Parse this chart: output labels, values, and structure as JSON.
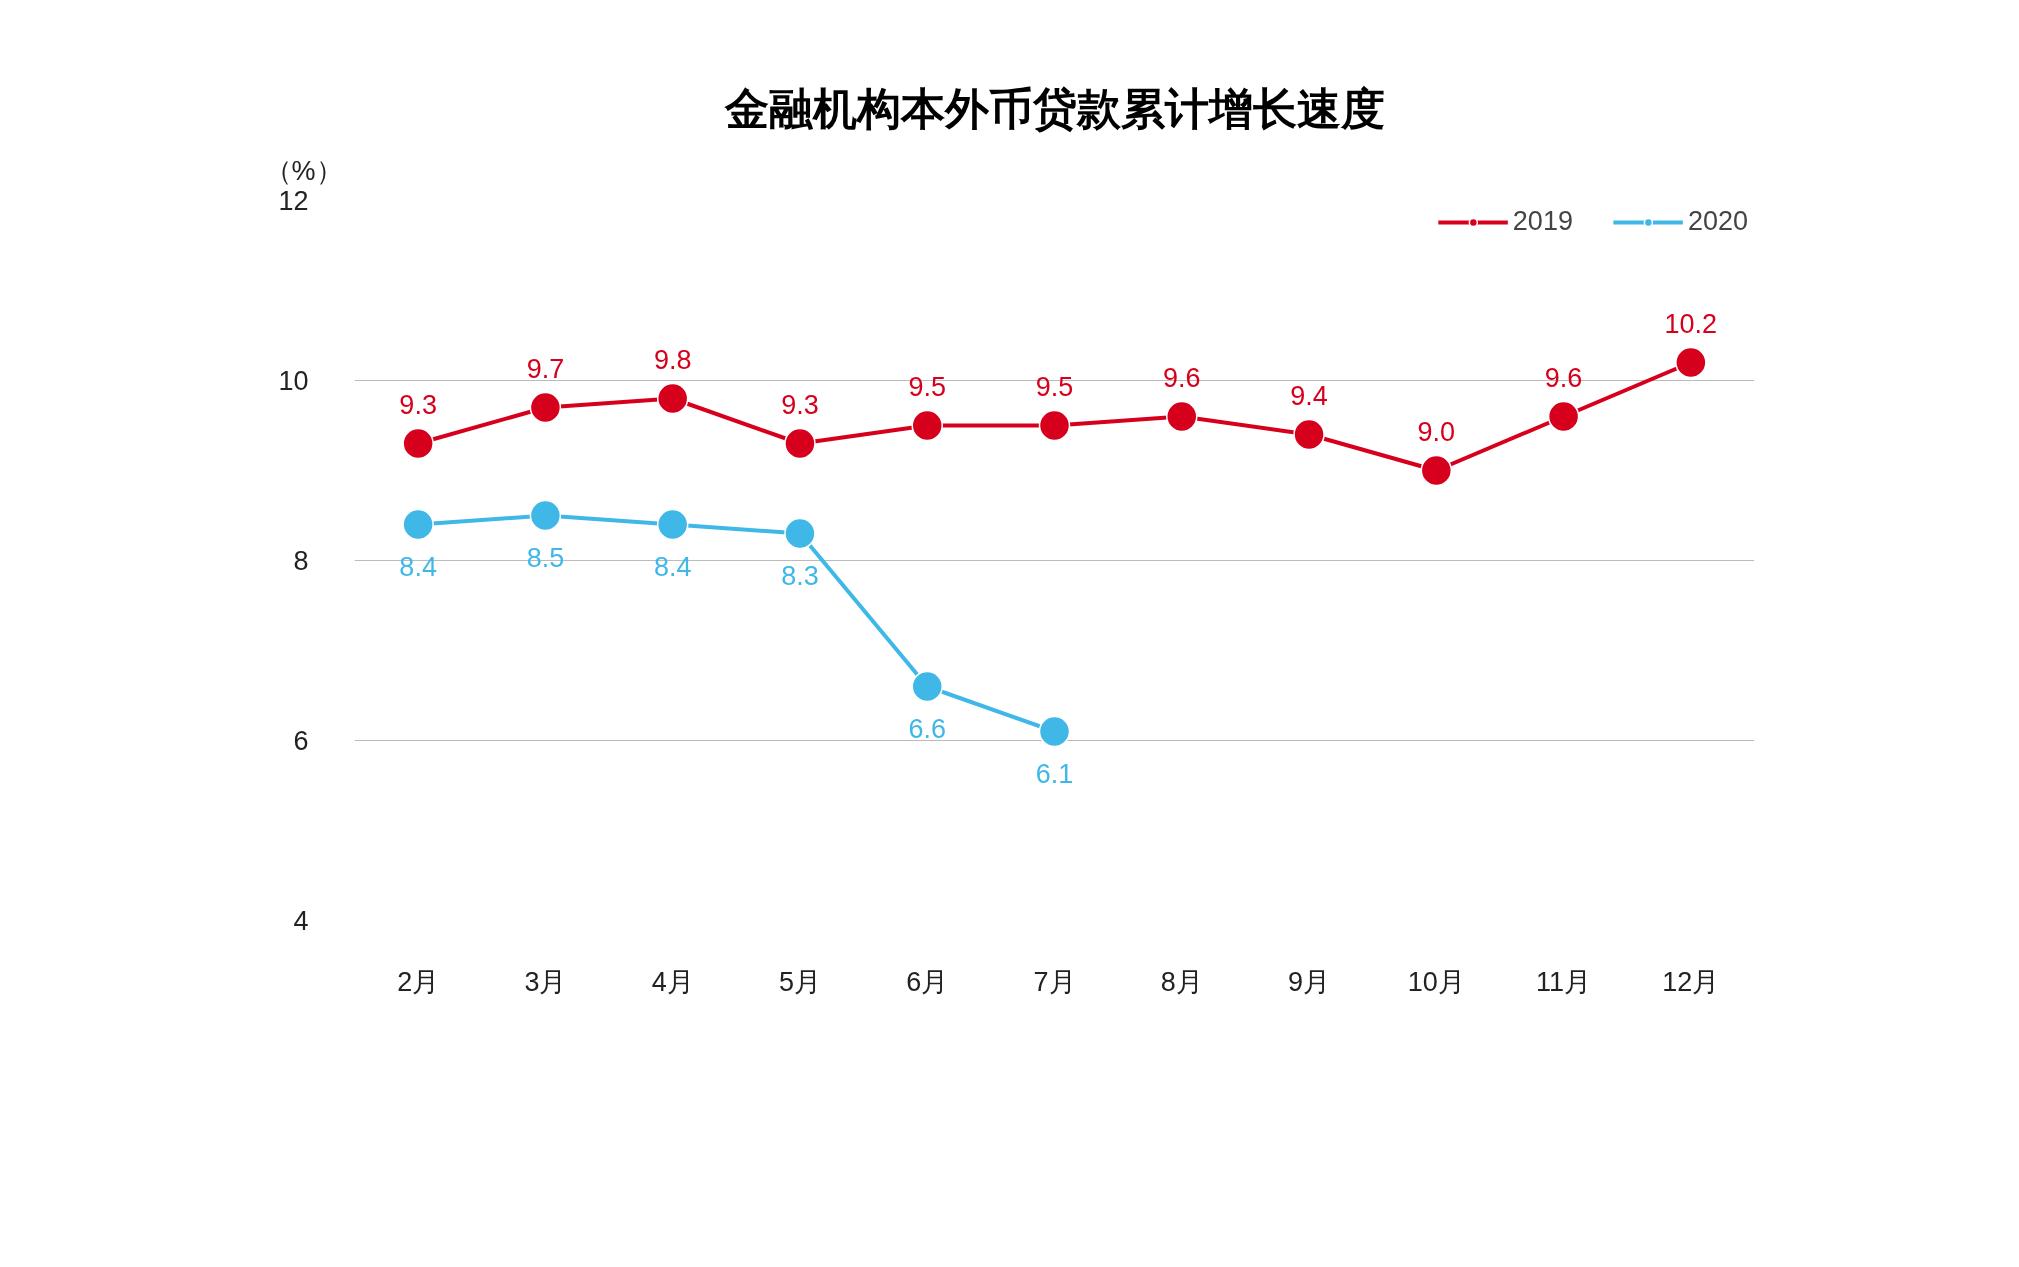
{
  "chart_data": {
    "type": "line",
    "title": "金融机构本外币贷款累计增长速度",
    "annotations": [
      "（%）"
    ],
    "categories": [
      "2月",
      "3月",
      "4月",
      "5月",
      "6月",
      "7月",
      "8月",
      "9月",
      "10月",
      "11月",
      "12月"
    ],
    "series": [
      {
        "name": "2019",
        "color": "#d7001c",
        "values": [
          9.3,
          9.7,
          9.8,
          9.3,
          9.5,
          9.5,
          9.6,
          9.4,
          9.0,
          9.6,
          10.2
        ],
        "value_labels": [
          "9.3",
          "9.7",
          "9.8",
          "9.3",
          "9.5",
          "9.5",
          "9.6",
          "9.4",
          "9.0",
          "9.6",
          "10.2"
        ]
      },
      {
        "name": "2020",
        "color": "#3fb8e8",
        "values": [
          8.4,
          8.5,
          8.4,
          8.3,
          6.6,
          6.1,
          null,
          null,
          null,
          null,
          null
        ],
        "value_labels": [
          "8.4",
          "8.5",
          "8.4",
          "8.3",
          "6.6",
          "6.1",
          null,
          null,
          null,
          null,
          null
        ]
      }
    ],
    "ylim": [
      4,
      12
    ],
    "yticks": [
      4,
      6,
      8,
      10,
      12
    ],
    "grid": "y",
    "legend": "top right",
    "marker": "circle"
  }
}
